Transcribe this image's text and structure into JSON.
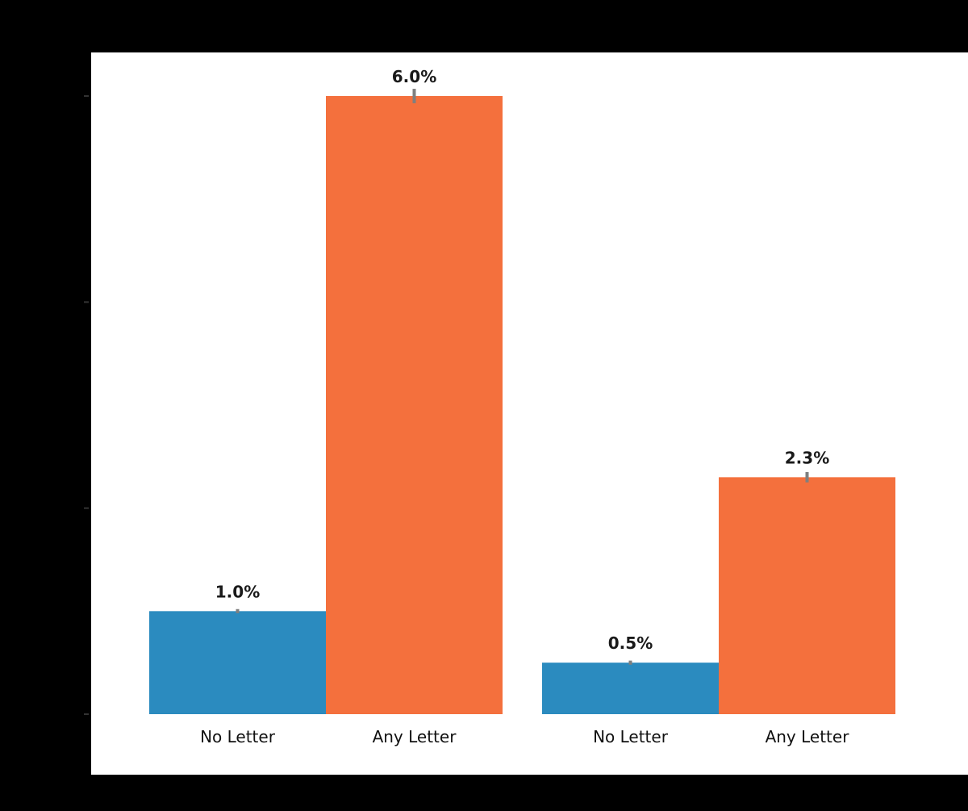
{
  "chart_data": {
    "type": "bar",
    "ylim": [
      0,
      6
    ],
    "yticks": [
      0,
      2,
      4,
      6
    ],
    "ytick_labels": [
      "",
      "",
      "",
      ""
    ],
    "grid": false,
    "groups": [
      {
        "name": "",
        "bars": [
          {
            "category": "No Letter",
            "value": 1.0,
            "label": "1.0%",
            "error": 0.02
          },
          {
            "category": "Any Letter",
            "value": 6.0,
            "label": "6.0%",
            "error": 0.07
          }
        ]
      },
      {
        "name": "",
        "bars": [
          {
            "category": "No Letter",
            "value": 0.5,
            "label": "0.5%",
            "error": 0.01
          },
          {
            "category": "Any Letter",
            "value": 2.3,
            "label": "2.3%",
            "error": 0.05
          }
        ]
      }
    ],
    "colors": {
      "No Letter": "#2b8bbf",
      "Any Letter": "#f4703d",
      "error_bar": "#7f7f7f",
      "plot_background": "#ffffff"
    }
  }
}
